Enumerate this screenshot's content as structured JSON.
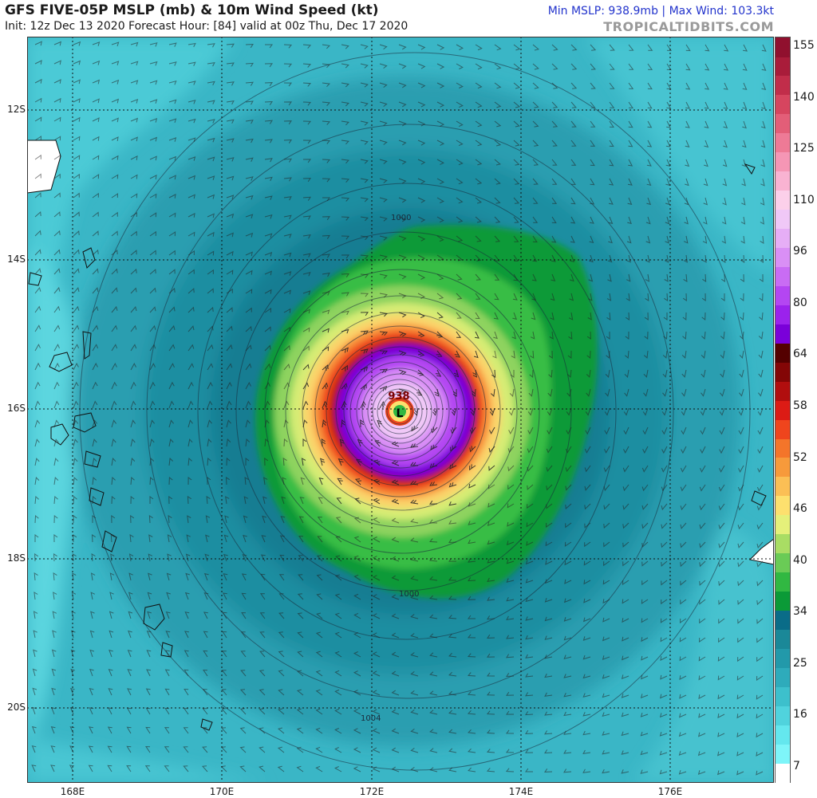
{
  "header": {
    "title": "GFS FIVE-05P MSLP (mb) & 10m Wind Speed (kt)",
    "subtitle": "Init: 12z Dec 13 2020   Forecast Hour: [84]   valid at 00z Thu, Dec 17 2020",
    "stats": "Min MSLP: 938.9mb | Max Wind: 103.3kt",
    "brand": "TROPICALTIDBITS.COM"
  },
  "map": {
    "lat_labels": [
      "12S",
      "14S",
      "16S",
      "18S",
      "20S"
    ],
    "lon_labels": [
      "168E",
      "170E",
      "172E",
      "174E",
      "176E"
    ],
    "center_pressure": "938",
    "low_marker": "L",
    "isobar_labels": [
      "1000",
      "1000",
      "1004"
    ]
  },
  "colorbar": {
    "ticks": [
      "155",
      "140",
      "125",
      "110",
      "96",
      "80",
      "64",
      "58",
      "52",
      "46",
      "40",
      "34",
      "25",
      "16",
      "7"
    ],
    "colors": [
      "#ffffff",
      "#7ef5f9",
      "#64e7ee",
      "#50d3dd",
      "#3dc0cc",
      "#2eabbb",
      "#2299aa",
      "#1a8898",
      "#0a6c88",
      "#0b9a37",
      "#31b842",
      "#6acb56",
      "#a9dd64",
      "#e5f07a",
      "#fde06e",
      "#fbbf55",
      "#f79a3b",
      "#f4752a",
      "#ef451d",
      "#dc1b15",
      "#b10e0e",
      "#830606",
      "#540000",
      "#7a00d9",
      "#9b22ec",
      "#b446f2",
      "#c96cf4",
      "#d98ff5",
      "#e6aef6",
      "#f0c8f7",
      "#fcd0ea",
      "#f9b3d2",
      "#f596b5",
      "#ee7a96",
      "#e35e78",
      "#d6455f",
      "#c12d4a",
      "#a91c3a",
      "#90102e"
    ],
    "colors_top_to_bottom": "reversed"
  }
}
